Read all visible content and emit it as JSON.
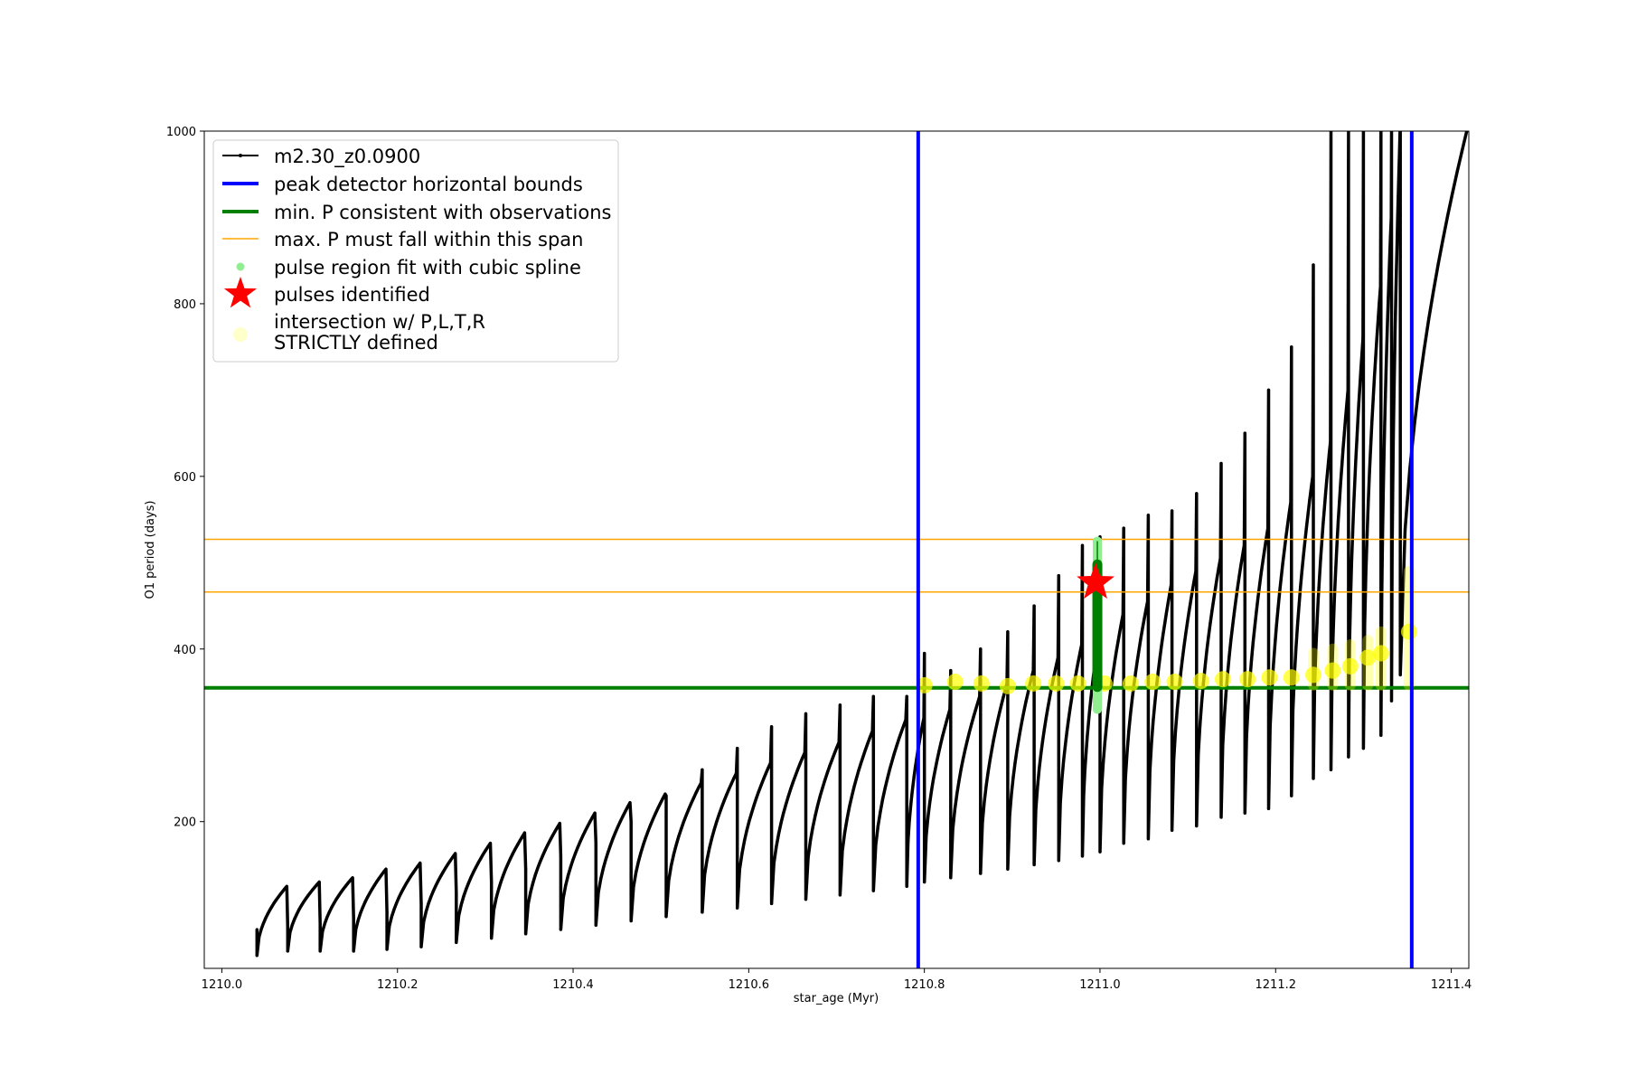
{
  "chart_data": {
    "type": "line",
    "xlabel": "star_age (Myr)",
    "ylabel": "O1 period (days)",
    "xlim": [
      1209.98,
      1211.42
    ],
    "ylim": [
      30,
      1000
    ],
    "x_ticks": [
      1210.0,
      1210.2,
      1210.4,
      1210.6,
      1210.8,
      1211.0,
      1211.2,
      1211.4
    ],
    "x_tick_labels": [
      "1210.0",
      "1210.2",
      "1210.4",
      "1210.6",
      "1210.8",
      "1211.0",
      "1211.2",
      "1211.4"
    ],
    "y_ticks": [
      200,
      400,
      600,
      800,
      1000
    ],
    "y_tick_labels": [
      "200",
      "400",
      "600",
      "800",
      "1000"
    ],
    "grid": false,
    "legend_position": "upper-left",
    "legend": [
      {
        "label": "m2.30_z0.0900",
        "style": "black line with small dot markers"
      },
      {
        "label": "peak detector horizontal bounds",
        "style": "blue thick line"
      },
      {
        "label": "min. P consistent with observations",
        "style": "green thick line"
      },
      {
        "label": "max. P must fall within this span",
        "style": "orange thin line"
      },
      {
        "label": "pulse region fit with cubic spline",
        "style": "light green dot"
      },
      {
        "label": "pulses identified",
        "style": "red star"
      },
      {
        "label": "intersection w/ P,L,T,R",
        "label_line2": "STRICTLY defined",
        "style": "pale yellow circle"
      }
    ],
    "series_main": {
      "name": "m2.30_z0.0900",
      "color": "#000000",
      "pulse_ages": [
        1210.04,
        1210.075,
        1210.112,
        1210.15,
        1210.188,
        1210.227,
        1210.267,
        1210.307,
        1210.346,
        1210.386,
        1210.426,
        1210.466,
        1210.506,
        1210.547,
        1210.587,
        1210.626,
        1210.665,
        1210.704,
        1210.742,
        1210.78,
        1210.8,
        1210.83,
        1210.864,
        1210.895,
        1210.925,
        1210.953,
        1210.98,
        1211.0,
        1211.027,
        1211.055,
        1211.082,
        1211.11,
        1211.138,
        1211.165,
        1211.192,
        1211.218,
        1211.243,
        1211.263,
        1211.283,
        1211.3,
        1211.32,
        1211.332,
        1211.342
      ],
      "pulse_min_periods": [
        45,
        50,
        50,
        50,
        52,
        55,
        60,
        65,
        70,
        75,
        80,
        85,
        90,
        95,
        100,
        105,
        110,
        115,
        120,
        125,
        130,
        135,
        140,
        145,
        150,
        155,
        160,
        165,
        175,
        180,
        190,
        195,
        205,
        210,
        215,
        230,
        250,
        260,
        275,
        285,
        300,
        340,
        370
      ],
      "pulse_max_periods": [
        125,
        130,
        135,
        145,
        152,
        163,
        175,
        187,
        198,
        210,
        222,
        232,
        245,
        256,
        268,
        280,
        292,
        305,
        318,
        320,
        330,
        345,
        360,
        375,
        390,
        405,
        420,
        440,
        455,
        475,
        490,
        505,
        520,
        540,
        570,
        600,
        640,
        700,
        760,
        820,
        900,
        1000,
        1000
      ],
      "spike_peaks": [
        75,
        78,
        82,
        88,
        95,
        105,
        118,
        130,
        145,
        160,
        175,
        200,
        230,
        260,
        285,
        310,
        325,
        335,
        345,
        345,
        395,
        375,
        400,
        420,
        450,
        485,
        520,
        530,
        540,
        555,
        560,
        580,
        615,
        650,
        700,
        750,
        845,
        1000,
        1000,
        1000,
        1000,
        1000,
        1000
      ]
    },
    "vertical_lines": {
      "name": "peak detector horizontal bounds",
      "color": "#0000ff",
      "x": [
        1210.793,
        1211.355
      ]
    },
    "min_P_line": {
      "name": "min. P consistent with observations",
      "color": "#008000",
      "y": 355
    },
    "max_P_span": {
      "name": "max. P must fall within this span",
      "color": "#ffa500",
      "y": [
        466,
        527
      ]
    },
    "spline_fit": {
      "name": "pulse region fit with cubic spline",
      "color": "#90ee90",
      "x": 1210.997,
      "y_range": [
        330,
        525
      ]
    },
    "pulse_identified": {
      "name": "pulses identified",
      "color": "#ff0000",
      "x": 1210.995,
      "y": 477
    },
    "intersections": {
      "name": "intersection w/ P,L,T,R STRICTLY defined",
      "color": "#ffff00",
      "points": [
        [
          1210.8,
          358
        ],
        [
          1210.835,
          362
        ],
        [
          1210.865,
          360
        ],
        [
          1210.895,
          357
        ],
        [
          1210.924,
          360
        ],
        [
          1210.95,
          360
        ],
        [
          1210.975,
          360
        ],
        [
          1211.005,
          360
        ],
        [
          1211.035,
          360
        ],
        [
          1211.06,
          362
        ],
        [
          1211.085,
          362
        ],
        [
          1211.115,
          363
        ],
        [
          1211.14,
          365
        ],
        [
          1211.168,
          365
        ],
        [
          1211.193,
          367
        ],
        [
          1211.218,
          367
        ],
        [
          1211.243,
          370
        ],
        [
          1211.265,
          375
        ],
        [
          1211.285,
          380
        ],
        [
          1211.305,
          390
        ],
        [
          1211.32,
          395
        ],
        [
          1211.352,
          420
        ]
      ],
      "column_tops": [
        [
          1211.243,
          395
        ],
        [
          1211.265,
          400
        ],
        [
          1211.285,
          405
        ],
        [
          1211.305,
          410
        ],
        [
          1211.32,
          420
        ],
        [
          1211.352,
          490
        ]
      ]
    }
  }
}
